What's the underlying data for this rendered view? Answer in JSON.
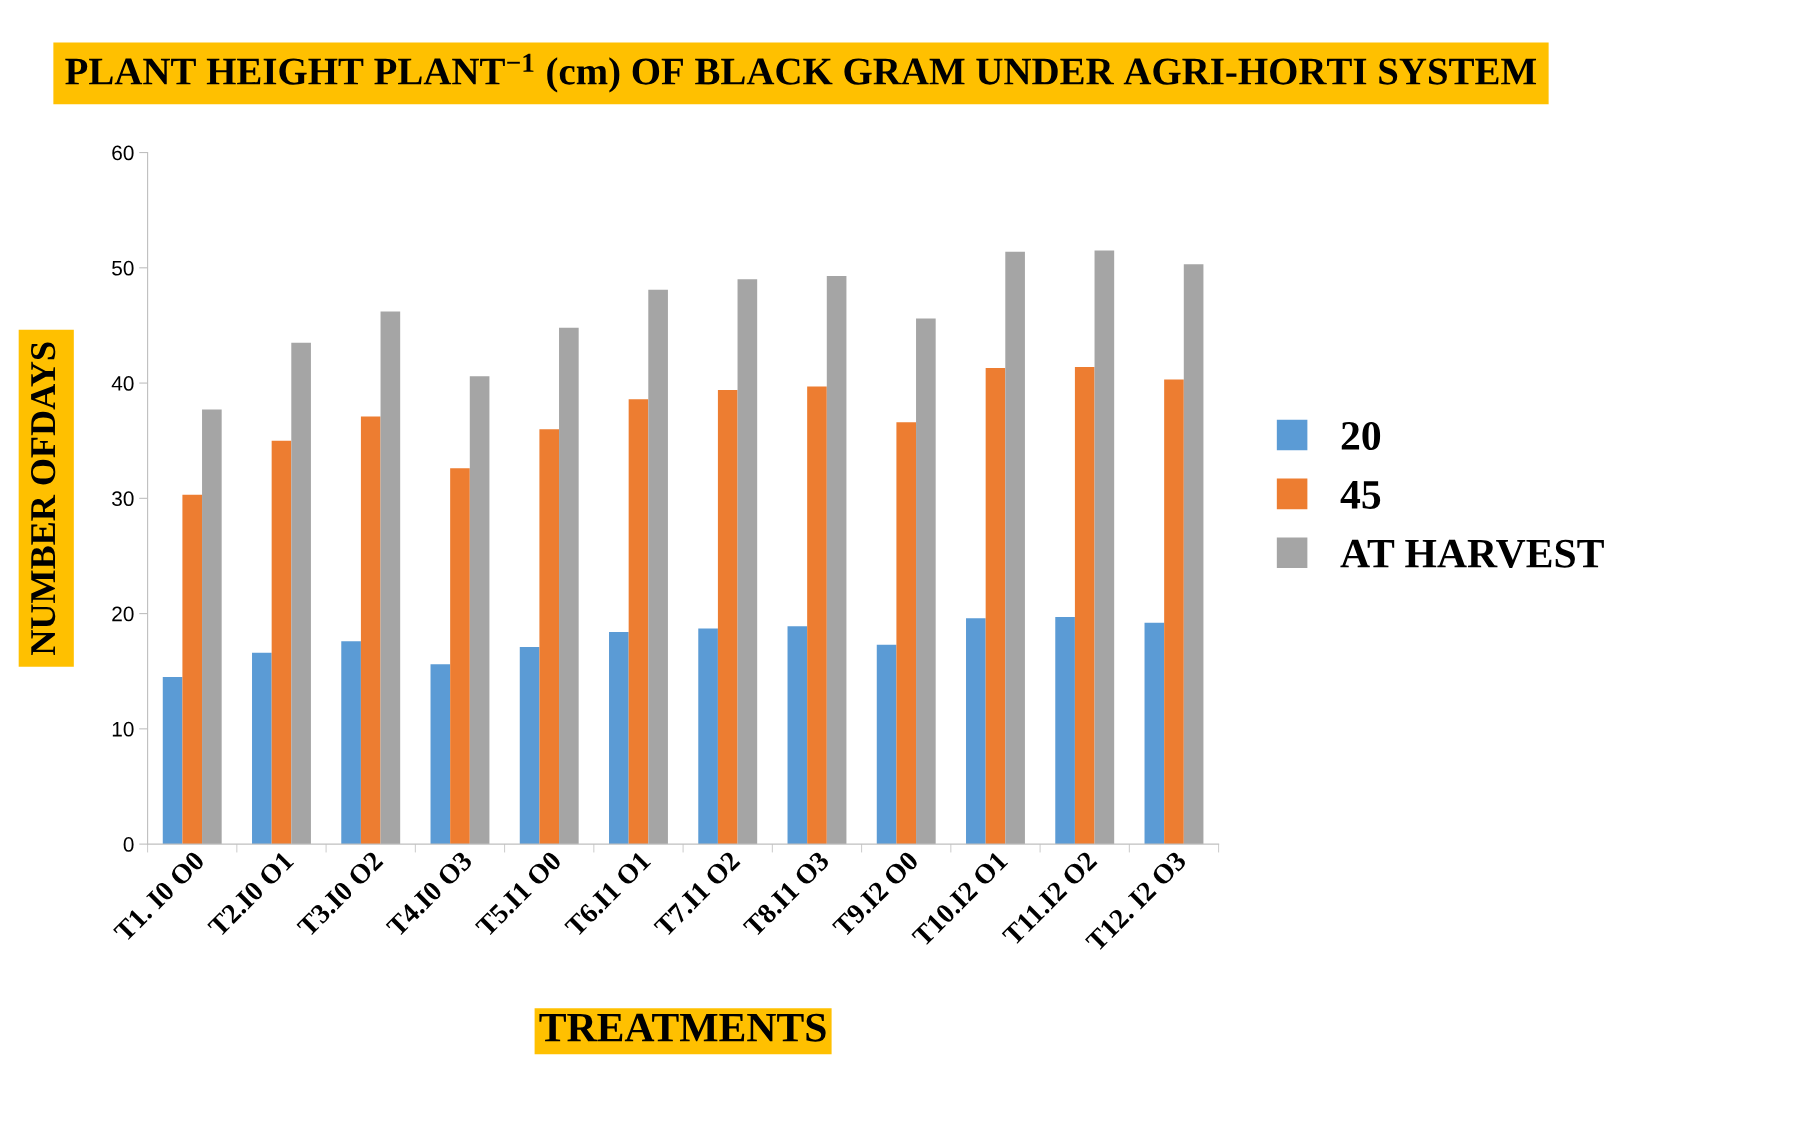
{
  "chart_data": {
    "type": "bar",
    "title": "PLANT HEIGHT PLANT$^{−1}$ (cm) OF BLACK GRAM UNDER AGRI-HORTI SYSTEM",
    "xlabel": "TREATMENTS",
    "ylabel": "NUMBER OFDAYS",
    "categories": [
      "T1. I0 O0",
      "T2.I0 O1",
      "T3.I0 O2",
      "T4.I0 O3",
      "T5.I1 O0",
      "T6.I1 O1",
      "T7.I1 O2",
      "T8.I1 O3",
      "T9.I2 O0",
      "T10.I2 O1",
      "T11.I2 O2",
      "T12. I2 O3"
    ],
    "series": [
      {
        "name": "20",
        "color": "#5b9bd5",
        "values": [
          14.5,
          16.6,
          17.6,
          15.6,
          17.1,
          18.4,
          18.7,
          18.9,
          17.3,
          19.6,
          19.7,
          19.2
        ]
      },
      {
        "name": "45",
        "color": "#ed7d31",
        "values": [
          30.3,
          35.0,
          37.1,
          32.6,
          36.0,
          38.6,
          39.4,
          39.7,
          36.6,
          41.3,
          41.4,
          40.3
        ]
      },
      {
        "name": "AT HARVEST",
        "color": "#a5a5a5",
        "values": [
          37.7,
          43.5,
          46.2,
          40.6,
          44.8,
          48.1,
          49.0,
          49.3,
          45.6,
          51.4,
          51.5,
          50.3
        ]
      }
    ],
    "ylim": [
      0,
      60
    ],
    "yticks": [
      0,
      10,
      20,
      30,
      40,
      50,
      60
    ],
    "grid": false,
    "legend": "right"
  }
}
